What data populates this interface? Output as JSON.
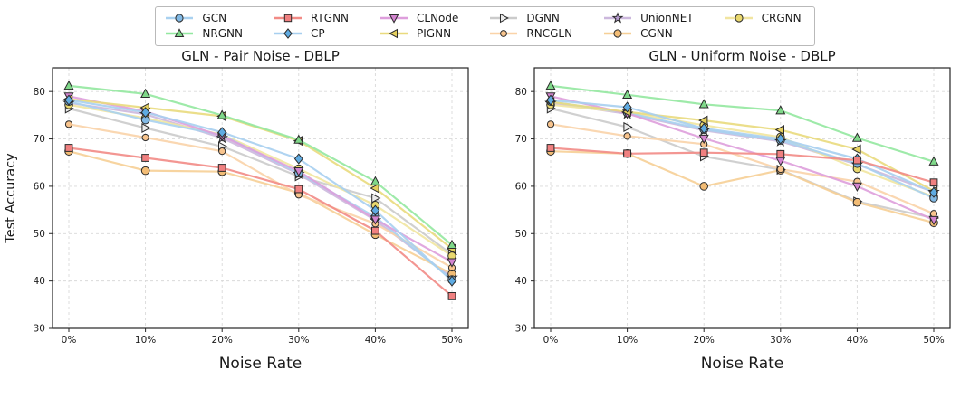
{
  "figure": {
    "background": "#ffffff",
    "axis_color": "#262626",
    "grid_color": "#d9d9d9"
  },
  "legend": {
    "position": "top-center",
    "entries_order": "column-major, 6 columns x 2 rows"
  },
  "series_styles": [
    {
      "name": "GCN",
      "marker": "circle",
      "line_color": "#a9d1f0",
      "marker_fill": "#82b9e4"
    },
    {
      "name": "NRGNN",
      "marker": "triangle-up",
      "line_color": "#93e8a0",
      "marker_fill": "#7fd889"
    },
    {
      "name": "RTGNN",
      "marker": "square",
      "line_color": "#f28b86",
      "marker_fill": "#f08080"
    },
    {
      "name": "CP",
      "marker": "diamond",
      "line_color": "#a7cfef",
      "marker_fill": "#5fabe2"
    },
    {
      "name": "CLNode",
      "marker": "triangle-down",
      "line_color": "#de9edc",
      "marker_fill": "#d384cf"
    },
    {
      "name": "PIGNN",
      "marker": "triangle-left",
      "line_color": "#e9da7d",
      "marker_fill": "#e5d05e"
    },
    {
      "name": "DGNN",
      "marker": "triangle-right",
      "line_color": "#cbcbcb",
      "marker_fill": "#ececec"
    },
    {
      "name": "RNCGLN",
      "marker": "circle-small",
      "line_color": "#fad3a8",
      "marker_fill": "#f8c48d"
    },
    {
      "name": "UnionNET",
      "marker": "star",
      "line_color": "#ccb8dd",
      "marker_fill": "#b89dd1"
    },
    {
      "name": "CGNN",
      "marker": "circle",
      "line_color": "#f6cf96",
      "marker_fill": "#f2bc75"
    },
    {
      "name": "CRGNN",
      "marker": "circle",
      "line_color": "#f1e5a0",
      "marker_fill": "#e9d86e"
    }
  ],
  "chart_data": [
    {
      "type": "line",
      "title": "GLN - Pair Noise - DBLP",
      "xlabel": "Noise Rate",
      "ylabel": "Test Accuracy",
      "categories": [
        "0%",
        "10%",
        "20%",
        "30%",
        "40%",
        "50%"
      ],
      "y_ticks": [
        30,
        40,
        50,
        60,
        70,
        80
      ],
      "ylim": [
        30,
        85
      ],
      "grid": true,
      "legend_position": "above-figure",
      "series": [
        {
          "name": "GCN",
          "values": [
            77.9,
            74.0,
            70.8,
            62.8,
            53.5,
            40.3
          ]
        },
        {
          "name": "NRGNN",
          "values": [
            81.2,
            79.5,
            75.0,
            69.8,
            61.0,
            47.6
          ]
        },
        {
          "name": "RTGNN",
          "values": [
            68.1,
            66.0,
            63.9,
            59.4,
            50.6,
            36.8
          ]
        },
        {
          "name": "CP",
          "values": [
            78.2,
            75.6,
            71.4,
            65.8,
            54.9,
            40.0
          ]
        },
        {
          "name": "CLNode",
          "values": [
            79.0,
            75.8,
            70.6,
            63.2,
            53.0,
            44.0
          ]
        },
        {
          "name": "PIGNN",
          "values": [
            78.4,
            76.6,
            74.8,
            69.6,
            59.6,
            46.8
          ]
        },
        {
          "name": "DGNN",
          "values": [
            76.4,
            72.3,
            68.4,
            62.1,
            57.5,
            45.6
          ]
        },
        {
          "name": "RNCGLN",
          "values": [
            73.1,
            70.3,
            67.4,
            58.2,
            52.1,
            42.8
          ]
        },
        {
          "name": "UnionNET",
          "values": [
            77.6,
            75.2,
            70.2,
            62.6,
            52.8,
            40.7
          ]
        },
        {
          "name": "CGNN",
          "values": [
            67.4,
            63.3,
            63.1,
            58.6,
            49.8,
            41.5
          ]
        },
        {
          "name": "CRGNN",
          "values": [
            77.2,
            74.4,
            70.9,
            63.7,
            56.0,
            45.3
          ]
        }
      ]
    },
    {
      "type": "line",
      "title": "GLN - Uniform Noise - DBLP",
      "xlabel": "Noise Rate",
      "ylabel": "",
      "categories": [
        "0%",
        "10%",
        "20%",
        "30%",
        "40%",
        "50%"
      ],
      "y_ticks": [
        30,
        40,
        50,
        60,
        70,
        80
      ],
      "ylim": [
        30,
        85
      ],
      "grid": true,
      "legend_position": "above-figure",
      "series": [
        {
          "name": "GCN",
          "values": [
            77.9,
            75.5,
            72.0,
            69.7,
            64.8,
            57.5
          ]
        },
        {
          "name": "NRGNN",
          "values": [
            81.2,
            79.3,
            77.3,
            76.0,
            70.2,
            65.2
          ]
        },
        {
          "name": "RTGNN",
          "values": [
            68.1,
            66.9,
            67.1,
            66.8,
            65.5,
            60.8
          ]
        },
        {
          "name": "CP",
          "values": [
            78.2,
            76.7,
            72.2,
            70.0,
            65.8,
            58.7
          ]
        },
        {
          "name": "CLNode",
          "values": [
            79.0,
            75.4,
            70.1,
            65.4,
            60.0,
            52.9
          ]
        },
        {
          "name": "PIGNN",
          "values": [
            77.8,
            75.7,
            73.9,
            71.9,
            67.8,
            59.0
          ]
        },
        {
          "name": "DGNN",
          "values": [
            76.4,
            72.5,
            66.3,
            63.5,
            56.8,
            53.3
          ]
        },
        {
          "name": "RNCGLN",
          "values": [
            73.1,
            70.6,
            68.9,
            63.6,
            61.0,
            54.2
          ]
        },
        {
          "name": "UnionNET",
          "values": [
            77.6,
            75.3,
            71.8,
            69.5,
            64.6,
            58.8
          ]
        },
        {
          "name": "CGNN",
          "values": [
            67.4,
            66.9,
            60.0,
            63.4,
            56.6,
            52.3
          ]
        },
        {
          "name": "CRGNN",
          "values": [
            77.2,
            75.6,
            72.9,
            70.4,
            63.7,
            57.8
          ]
        }
      ]
    }
  ]
}
